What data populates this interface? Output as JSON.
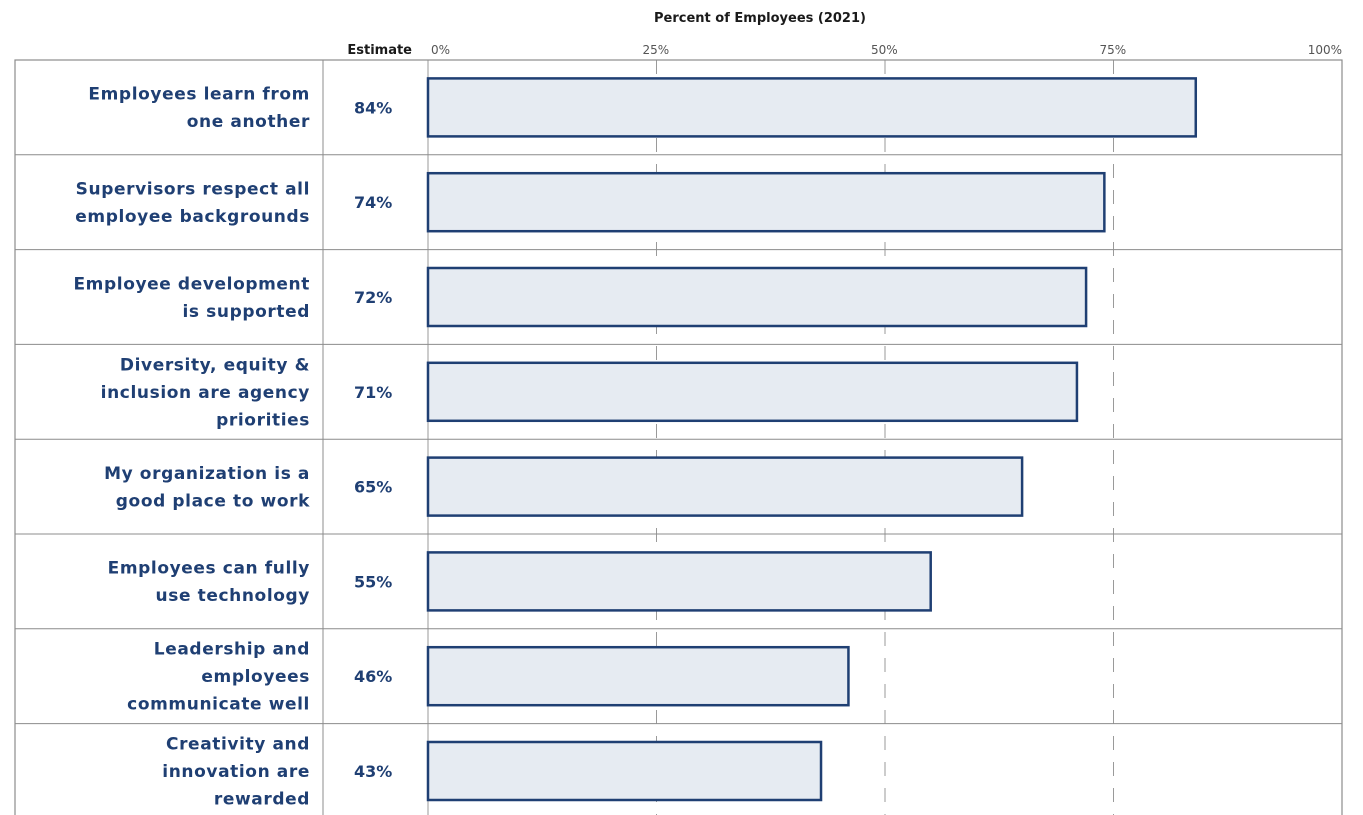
{
  "chart_data": {
    "type": "bar",
    "orientation": "horizontal",
    "title": "Percent of Employees (2021)",
    "estimate_header": "Estimate",
    "categories": [
      "Employees learn from one another",
      "Supervisors respect all employee backgrounds",
      "Employee development is supported",
      "Diversity, equity & inclusion are agency priorities",
      "My organization is a good place to work",
      "Employees can fully use technology",
      "Leadership and employees communicate well",
      "Creativity and innovation are rewarded"
    ],
    "category_lines": [
      [
        "Employees learn from",
        "one another"
      ],
      [
        "Supervisors respect all",
        "employee backgrounds"
      ],
      [
        "Employee development",
        "is supported"
      ],
      [
        "Diversity, equity &",
        "inclusion are agency",
        "priorities"
      ],
      [
        "My organization is a",
        "good place to work"
      ],
      [
        "Employees can fully",
        "use technology"
      ],
      [
        "Leadership and",
        "employees",
        "communicate well"
      ],
      [
        "Creativity and",
        "innovation are",
        "rewarded"
      ]
    ],
    "values": [
      84,
      74,
      72,
      71,
      65,
      55,
      46,
      43
    ],
    "value_labels": [
      "84%",
      "74%",
      "72%",
      "71%",
      "65%",
      "55%",
      "46%",
      "43%"
    ],
    "xlim": [
      0,
      100
    ],
    "x_ticks": [
      0,
      25,
      50,
      75,
      100
    ],
    "x_tick_labels": [
      "0%",
      "25%",
      "50%",
      "75%",
      "100%"
    ],
    "grid": "vertical dashed",
    "colors": {
      "bar_fill": "#e6ebf2",
      "bar_stroke": "#1f3f73",
      "label": "#1f3f73",
      "grid": "#9a9a9a",
      "row_border": "#8c8c8c"
    }
  }
}
